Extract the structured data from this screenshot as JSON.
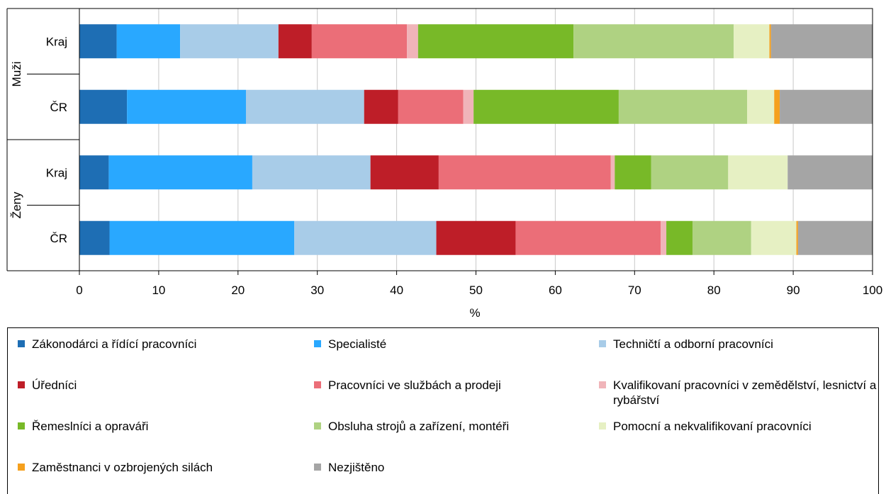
{
  "chart_data": {
    "type": "bar",
    "orientation": "horizontal",
    "stacked": true,
    "xlabel": "%",
    "xlim": [
      0,
      100
    ],
    "xticks": [
      "0",
      "10",
      "20",
      "30",
      "40",
      "50",
      "60",
      "70",
      "80",
      "90",
      "100"
    ],
    "grid": true,
    "legend_position": "bottom",
    "groups": [
      {
        "label": "Muži",
        "categories": [
          "Kraj",
          "ČR"
        ]
      },
      {
        "label": "Ženy",
        "categories": [
          "Kraj",
          "ČR"
        ]
      }
    ],
    "rows": [
      {
        "group": "Muži",
        "category": "Kraj"
      },
      {
        "group": "Muži",
        "category": "ČR"
      },
      {
        "group": "Ženy",
        "category": "Kraj"
      },
      {
        "group": "Ženy",
        "category": "ČR"
      }
    ],
    "series": [
      {
        "name": "Zákonodárci a řídící pracovníci",
        "color": "#1e6eb4",
        "values": [
          4.7,
          6.0,
          3.7,
          3.8
        ]
      },
      {
        "name": "Specialisté",
        "color": "#29a8ff",
        "values": [
          8.0,
          15.0,
          18.1,
          23.3
        ]
      },
      {
        "name": "Techničtí a odborní pracovníci",
        "color": "#a8cce8",
        "values": [
          12.4,
          14.9,
          14.9,
          17.9
        ]
      },
      {
        "name": "Úředníci",
        "color": "#be1e28",
        "values": [
          4.2,
          4.3,
          8.6,
          10.0
        ]
      },
      {
        "name": "Pracovníci ve službách a prodeji",
        "color": "#eb6e78",
        "values": [
          12.0,
          8.2,
          21.7,
          18.3
        ]
      },
      {
        "name": "Kvalifikovaní pracovníci v zemědělství, lesnictví a rybářství",
        "color": "#f0b4b9",
        "values": [
          1.4,
          1.3,
          0.5,
          0.7
        ]
      },
      {
        "name": "Řemeslníci a opraváři",
        "color": "#78b928",
        "values": [
          19.6,
          18.3,
          4.6,
          3.3
        ]
      },
      {
        "name": "Obsluha strojů a zařízení, montéři",
        "color": "#afd282",
        "values": [
          20.2,
          16.2,
          9.7,
          7.4
        ]
      },
      {
        "name": "Pomocní a nekvalifikovaní pracovníci",
        "color": "#e6f0c3",
        "values": [
          4.5,
          3.4,
          7.5,
          5.7
        ]
      },
      {
        "name": "Zaměstnanci v ozbrojených silách",
        "color": "#f5a01e",
        "values": [
          0.2,
          0.7,
          0.0,
          0.2
        ]
      },
      {
        "name": "Nezjištěno",
        "color": "#a5a5a5",
        "values": [
          12.8,
          11.7,
          10.7,
          9.4
        ]
      }
    ]
  }
}
